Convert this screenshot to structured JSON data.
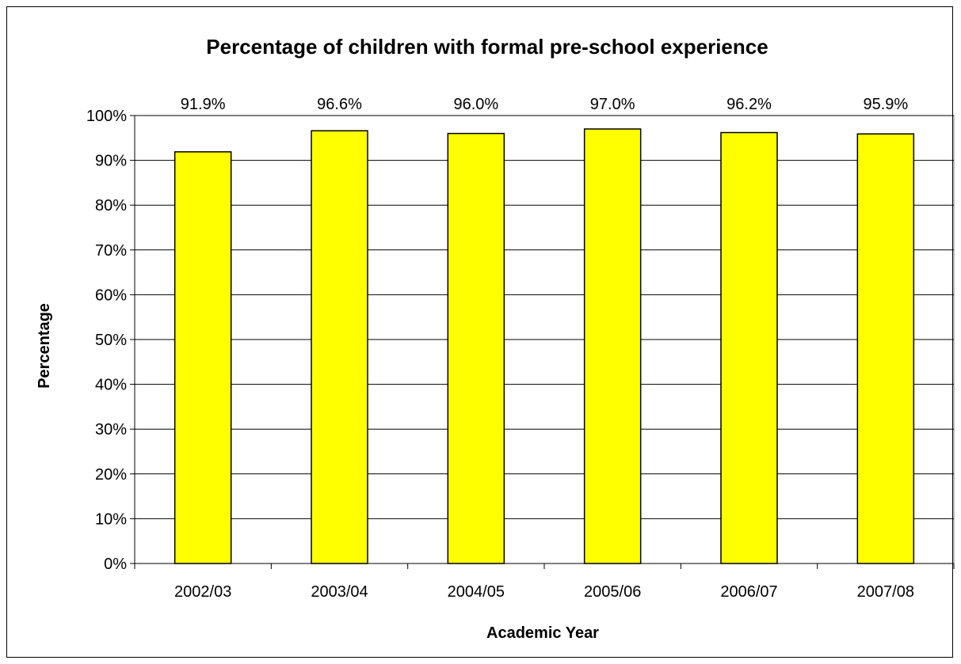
{
  "chart_data": {
    "type": "bar",
    "title": "Percentage of children with formal pre-school experience",
    "xlabel": "Academic Year",
    "ylabel": "Percentage",
    "categories": [
      "2002/03",
      "2003/04",
      "2004/05",
      "2005/06",
      "2006/07",
      "2007/08"
    ],
    "values": [
      91.9,
      96.6,
      96.0,
      97.0,
      96.2,
      95.9
    ],
    "data_labels": [
      "91.9%",
      "96.6%",
      "96.0%",
      "97.0%",
      "96.2%",
      "95.9%"
    ],
    "ylim": [
      0,
      100
    ],
    "y_ticks": [
      0,
      10,
      20,
      30,
      40,
      50,
      60,
      70,
      80,
      90,
      100
    ],
    "y_tick_labels": [
      "0%",
      "10%",
      "20%",
      "30%",
      "40%",
      "50%",
      "60%",
      "70%",
      "80%",
      "90%",
      "100%"
    ],
    "grid": true,
    "legend": "none",
    "colors": {
      "bar_fill": "#FFFF00",
      "bar_stroke": "#000000",
      "grid": "#000000",
      "background": "#FFFFFF"
    }
  }
}
